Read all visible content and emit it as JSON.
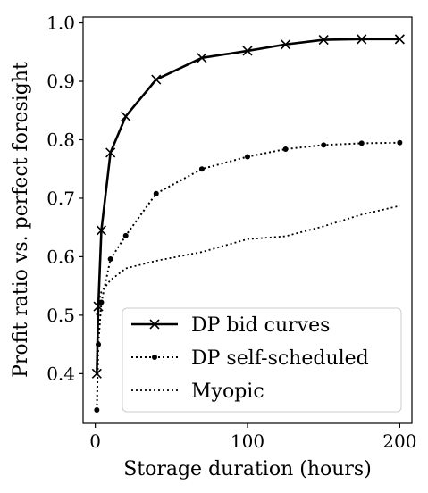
{
  "chart_data": {
    "type": "line",
    "title": "",
    "xlabel": "Storage duration (hours)",
    "ylabel": "Profit ratio vs. perfect foresight",
    "xlim": [
      -8,
      208
    ],
    "ylim": [
      0.315,
      1.01
    ],
    "xticks": [
      0,
      100,
      200
    ],
    "yticks": [
      0.4,
      0.5,
      0.6,
      0.7,
      0.8,
      0.9,
      1.0
    ],
    "ytick_labels": [
      "0.4",
      "0.5",
      "0.6",
      "0.7",
      "0.8",
      "0.9",
      "1.0"
    ],
    "grid": false,
    "legend_position": "lower-right",
    "series": [
      {
        "name": "DP bid curves",
        "style": "solid",
        "marker": "x",
        "color": "#000000",
        "x": [
          1,
          2,
          4,
          10,
          20,
          40,
          70,
          100,
          125,
          150,
          175,
          200
        ],
        "y": [
          0.4,
          0.515,
          0.645,
          0.778,
          0.84,
          0.903,
          0.94,
          0.952,
          0.963,
          0.971,
          0.972,
          0.972
        ]
      },
      {
        "name": "DP self-scheduled",
        "style": "dotted-heavy",
        "marker": "dot",
        "color": "#000000",
        "x": [
          1,
          2,
          4,
          10,
          20,
          40,
          70,
          100,
          125,
          150,
          175,
          200
        ],
        "y": [
          0.338,
          0.45,
          0.522,
          0.596,
          0.636,
          0.708,
          0.75,
          0.771,
          0.784,
          0.791,
          0.794,
          0.795
        ]
      },
      {
        "name": "Myopic",
        "style": "dotted",
        "marker": "none",
        "color": "#000000",
        "x": [
          1,
          2,
          4,
          10,
          20,
          40,
          70,
          100,
          125,
          150,
          175,
          200
        ],
        "y": [
          0.5,
          0.52,
          0.54,
          0.56,
          0.58,
          0.593,
          0.608,
          0.63,
          0.635,
          0.652,
          0.672,
          0.687
        ]
      }
    ]
  }
}
